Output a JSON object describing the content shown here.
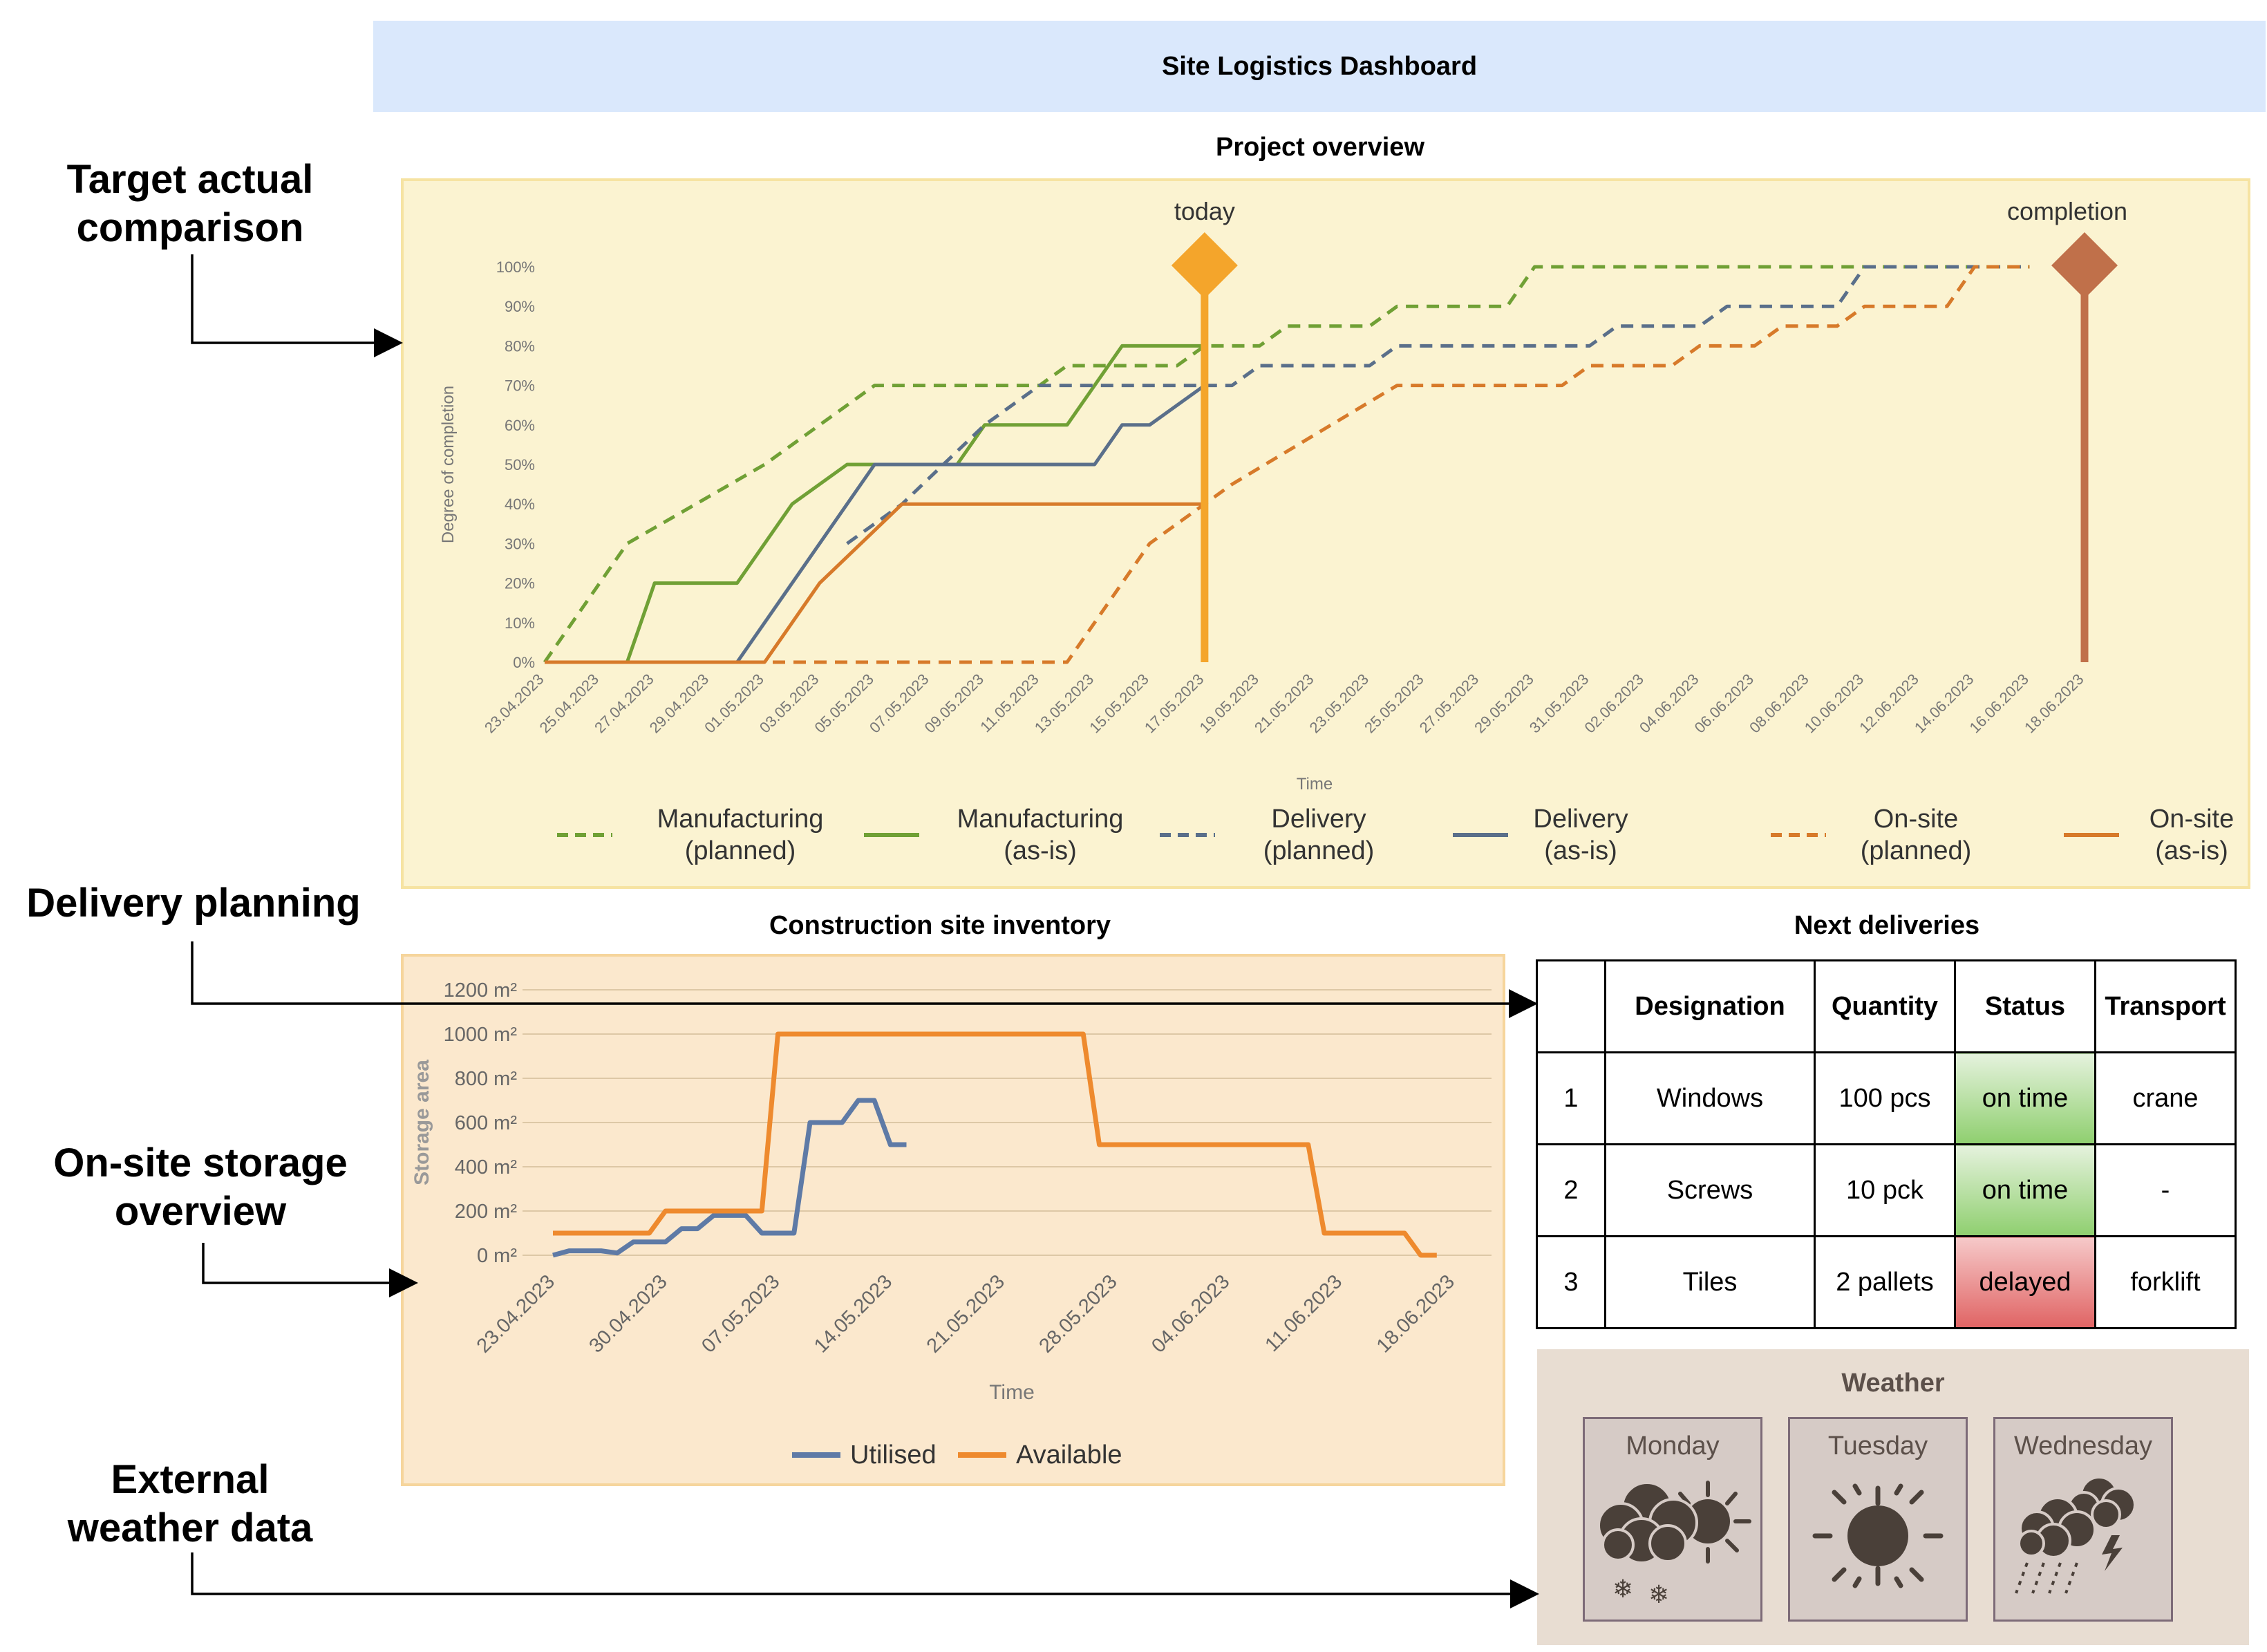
{
  "header": {
    "title": "Site Logistics Dashboard"
  },
  "side_labels": {
    "target": "Target actual\ncomparison",
    "delivery": "Delivery planning",
    "storage": "On-site storage\noverview",
    "weather": "External\nweather data"
  },
  "sections": {
    "project_overview": "Project overview",
    "inventory": "Construction site inventory",
    "next_deliveries": "Next deliveries",
    "weather": "Weather"
  },
  "chart_data": [
    {
      "type": "line",
      "title": "Project overview",
      "xlabel": "Time",
      "ylabel": "Degree of completion",
      "ylim": [
        0,
        100
      ],
      "yticks": [
        "0%",
        "10%",
        "20%",
        "30%",
        "40%",
        "50%",
        "60%",
        "70%",
        "80%",
        "90%",
        "100%"
      ],
      "xticks": [
        "23.04.2023",
        "25.04.2023",
        "27.04.2023",
        "29.04.2023",
        "01.05.2023",
        "03.05.2023",
        "05.05.2023",
        "07.05.2023",
        "09.05.2023",
        "11.05.2023",
        "13.05.2023",
        "15.05.2023",
        "17.05.2023",
        "19.05.2023",
        "21.05.2023",
        "23.05.2023",
        "25.05.2023",
        "27.05.2023",
        "29.05.2023",
        "31.05.2023",
        "02.06.2023",
        "04.06.2023",
        "06.06.2023",
        "08.06.2023",
        "10.06.2023",
        "12.06.2023",
        "14.06.2023",
        "16.06.2023",
        "18.06.2023"
      ],
      "markers": [
        {
          "label": "today",
          "x": "17.05.2023",
          "color": "#f4a52b"
        },
        {
          "label": "completion",
          "x": "18.06.2023",
          "color": "#c0704a"
        }
      ],
      "series": [
        {
          "name": "Manufacturing\n(planned)",
          "color": "#70a035",
          "dash": true,
          "points": [
            [
              "23.04.2023",
              0
            ],
            [
              "26.04.2023",
              30
            ],
            [
              "01.05.2023",
              50
            ],
            [
              "05.05.2023",
              70
            ],
            [
              "11.05.2023",
              70
            ],
            [
              "12.05.2023",
              75
            ],
            [
              "16.05.2023",
              75
            ],
            [
              "17.05.2023",
              80
            ],
            [
              "19.05.2023",
              80
            ],
            [
              "20.05.2023",
              85
            ],
            [
              "23.05.2023",
              85
            ],
            [
              "24.05.2023",
              90
            ],
            [
              "28.05.2023",
              90
            ],
            [
              "29.05.2023",
              100
            ],
            [
              "16.06.2023",
              100
            ]
          ]
        },
        {
          "name": "Manufacturing\n(as-is)",
          "color": "#70a035",
          "dash": false,
          "points": [
            [
              "26.04.2023",
              0
            ],
            [
              "27.04.2023",
              20
            ],
            [
              "30.04.2023",
              20
            ],
            [
              "02.05.2023",
              40
            ],
            [
              "04.05.2023",
              50
            ],
            [
              "06.05.2023",
              50
            ],
            [
              "08.05.2023",
              50
            ],
            [
              "09.05.2023",
              60
            ],
            [
              "12.05.2023",
              60
            ],
            [
              "14.05.2023",
              80
            ],
            [
              "17.05.2023",
              80
            ]
          ]
        },
        {
          "name": "Delivery\n(planned)",
          "color": "#5a6f8a",
          "dash": true,
          "points": [
            [
              "04.05.2023",
              30
            ],
            [
              "06.05.2023",
              40
            ],
            [
              "09.05.2023",
              60
            ],
            [
              "11.05.2023",
              70
            ],
            [
              "18.05.2023",
              70
            ],
            [
              "19.05.2023",
              75
            ],
            [
              "23.05.2023",
              75
            ],
            [
              "24.05.2023",
              80
            ],
            [
              "31.05.2023",
              80
            ],
            [
              "01.06.2023",
              85
            ],
            [
              "04.06.2023",
              85
            ],
            [
              "05.06.2023",
              90
            ],
            [
              "09.06.2023",
              90
            ],
            [
              "10.06.2023",
              100
            ],
            [
              "16.06.2023",
              100
            ]
          ]
        },
        {
          "name": "Delivery\n(as-is)",
          "color": "#5a6f8a",
          "dash": false,
          "points": [
            [
              "23.04.2023",
              0
            ],
            [
              "30.04.2023",
              0
            ],
            [
              "05.05.2023",
              50
            ],
            [
              "13.05.2023",
              50
            ],
            [
              "14.05.2023",
              60
            ],
            [
              "15.05.2023",
              60
            ],
            [
              "17.05.2023",
              70
            ]
          ]
        },
        {
          "name": "On-site\n(planned)",
          "color": "#d77a2a",
          "dash": true,
          "points": [
            [
              "23.04.2023",
              0
            ],
            [
              "12.05.2023",
              0
            ],
            [
              "15.05.2023",
              30
            ],
            [
              "18.05.2023",
              45
            ],
            [
              "24.05.2023",
              70
            ],
            [
              "30.05.2023",
              70
            ],
            [
              "31.05.2023",
              75
            ],
            [
              "03.06.2023",
              75
            ],
            [
              "04.06.2023",
              80
            ],
            [
              "06.06.2023",
              80
            ],
            [
              "07.06.2023",
              85
            ],
            [
              "09.06.2023",
              85
            ],
            [
              "10.06.2023",
              90
            ],
            [
              "13.06.2023",
              90
            ],
            [
              "14.06.2023",
              100
            ],
            [
              "16.06.2023",
              100
            ]
          ]
        },
        {
          "name": "On-site\n(as-is)",
          "color": "#d77a2a",
          "dash": false,
          "points": [
            [
              "23.04.2023",
              0
            ],
            [
              "01.05.2023",
              0
            ],
            [
              "03.05.2023",
              20
            ],
            [
              "06.05.2023",
              40
            ],
            [
              "17.05.2023",
              40
            ]
          ]
        }
      ]
    },
    {
      "type": "line",
      "title": "Construction site inventory",
      "xlabel": "Time",
      "ylabel": "Storage area",
      "ylim": [
        0,
        1200
      ],
      "yticks": [
        "0 m²",
        "200 m²",
        "400 m²",
        "600 m²",
        "800 m²",
        "1000 m²",
        "1200 m²"
      ],
      "xticks": [
        "23.04.2023",
        "30.04.2023",
        "07.05.2023",
        "14.05.2023",
        "21.05.2023",
        "28.05.2023",
        "04.06.2023",
        "11.06.2023",
        "18.06.2023"
      ],
      "series": [
        {
          "name": "Utilised",
          "color": "#5e7aa6",
          "points": [
            [
              "23.04.2023",
              0
            ],
            [
              "24.04.2023",
              20
            ],
            [
              "26.04.2023",
              20
            ],
            [
              "27.04.2023",
              10
            ],
            [
              "28.04.2023",
              60
            ],
            [
              "30.04.2023",
              60
            ],
            [
              "01.05.2023",
              120
            ],
            [
              "02.05.2023",
              120
            ],
            [
              "03.05.2023",
              180
            ],
            [
              "05.05.2023",
              180
            ],
            [
              "06.05.2023",
              100
            ],
            [
              "08.05.2023",
              100
            ],
            [
              "09.05.2023",
              600
            ],
            [
              "11.05.2023",
              600
            ],
            [
              "12.05.2023",
              700
            ],
            [
              "13.05.2023",
              700
            ],
            [
              "14.05.2023",
              500
            ],
            [
              "15.05.2023",
              500
            ]
          ]
        },
        {
          "name": "Available",
          "color": "#ee8a2e",
          "points": [
            [
              "23.04.2023",
              100
            ],
            [
              "29.04.2023",
              100
            ],
            [
              "30.04.2023",
              200
            ],
            [
              "06.05.2023",
              200
            ],
            [
              "07.05.2023",
              1000
            ],
            [
              "26.05.2023",
              1000
            ],
            [
              "27.05.2023",
              500
            ],
            [
              "09.06.2023",
              500
            ],
            [
              "10.06.2023",
              100
            ],
            [
              "15.06.2023",
              100
            ],
            [
              "16.06.2023",
              0
            ],
            [
              "17.06.2023",
              0
            ]
          ]
        }
      ]
    }
  ],
  "deliveries": {
    "columns": [
      "",
      "Designation",
      "Quantity",
      "Status",
      "Transport"
    ],
    "rows": [
      {
        "no": "1",
        "designation": "Windows",
        "quantity": "100 pcs",
        "status": "on time",
        "status_color": "#8fcf6f",
        "transport": "crane"
      },
      {
        "no": "2",
        "designation": "Screws",
        "quantity": "10 pck",
        "status": "on time",
        "status_color": "#8fcf6f",
        "transport": "-"
      },
      {
        "no": "3",
        "designation": "Tiles",
        "quantity": "2 pallets",
        "status": "delayed",
        "status_color": "#e06464",
        "transport": "forklift"
      }
    ]
  },
  "weather": {
    "days": [
      {
        "name": "Monday",
        "icon": "cloud-sun-snow-icon"
      },
      {
        "name": "Tuesday",
        "icon": "sun-icon"
      },
      {
        "name": "Wednesday",
        "icon": "thunderstorm-rain-icon"
      }
    ]
  }
}
